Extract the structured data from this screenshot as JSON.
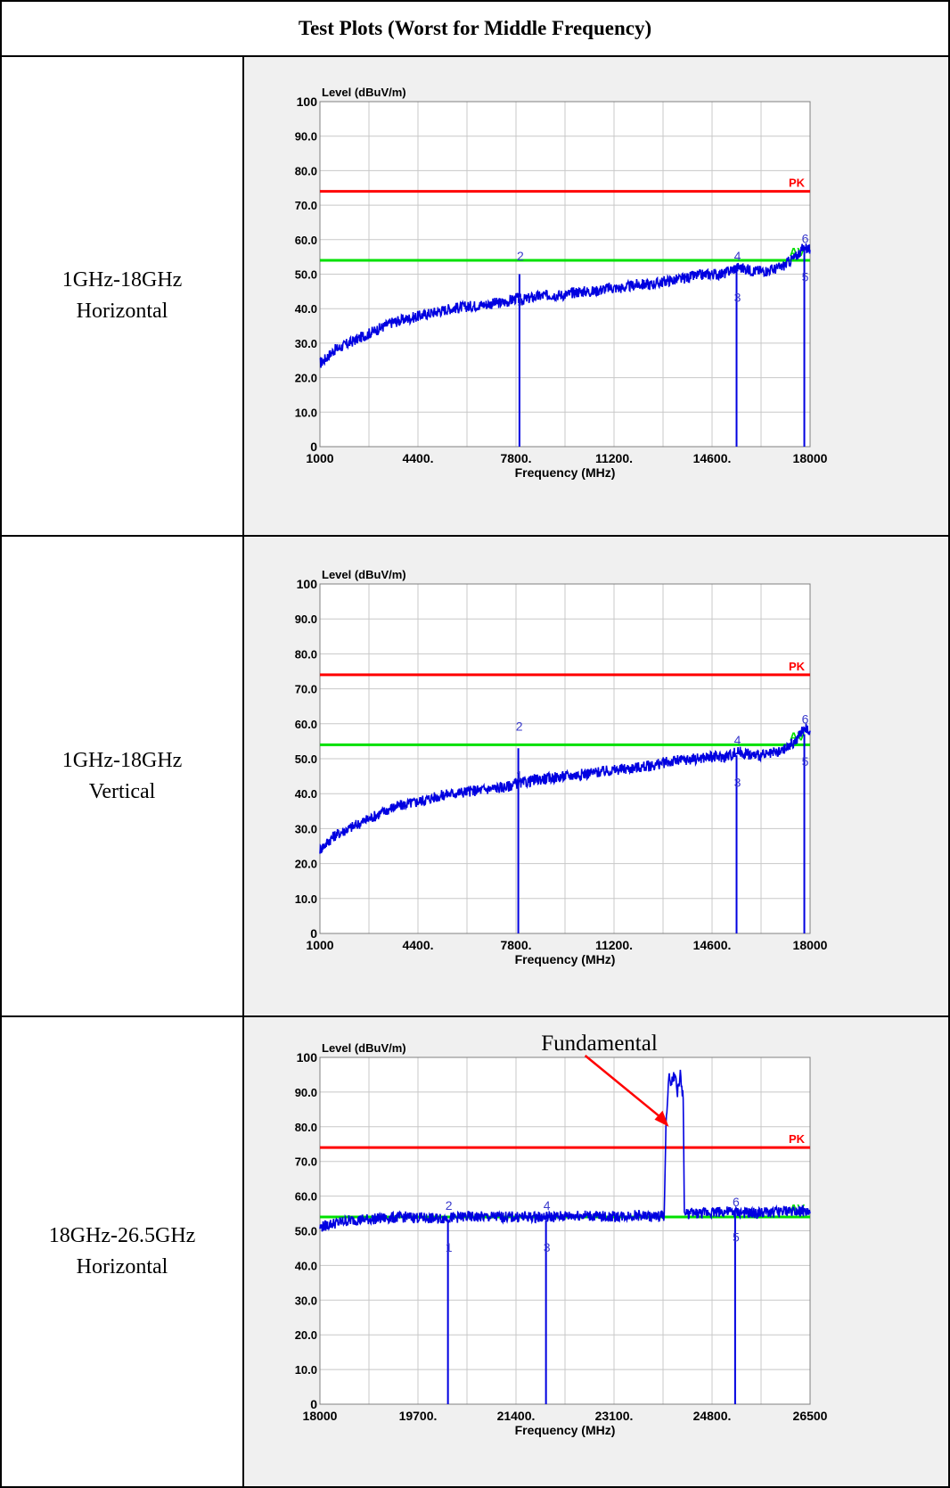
{
  "table": {
    "title": "Test Plots (Worst for Middle Frequency)",
    "rows": [
      {
        "line1": "1GHz-18GHz",
        "line2": "Horizontal"
      },
      {
        "line1": "1GHz-18GHz",
        "line2": "Vertical"
      },
      {
        "line1": "18GHz-26.5GHz",
        "line2": "Horizontal"
      }
    ]
  },
  "colors": {
    "trace": "#0000e0",
    "pk_limit": "#ff0000",
    "av_limit": "#00e000",
    "grid": "#c8c8c8",
    "marker_label": "#3a3acc"
  },
  "chart_data": [
    {
      "type": "line",
      "ylabel": "Level (dBuV/m)",
      "xlabel": "Frequency (MHz)",
      "xlim": [
        1000,
        18000
      ],
      "ylim": [
        0,
        100
      ],
      "x_ticks": [
        1000,
        4400,
        7800,
        11200,
        14600,
        18000
      ],
      "x_tick_labels": [
        "1000",
        "4400.",
        "7800.",
        "11200.",
        "14600.",
        "18000"
      ],
      "y_tick_labels": [
        "0",
        "10.0",
        "20.0",
        "30.0",
        "40.0",
        "50.0",
        "60.0",
        "70.0",
        "80.0",
        "90.0",
        "100"
      ],
      "limits": [
        {
          "label": "PK",
          "value": 74
        },
        {
          "label": "AV",
          "value": 54
        }
      ],
      "series": [
        {
          "x": [
            1000,
            1500,
            2000,
            2500,
            3000,
            3500,
            4000,
            4500,
            5000,
            5500,
            6000,
            6500,
            7000,
            7500,
            7800,
            8000,
            8500,
            9000,
            9500,
            10000,
            10500,
            11000,
            11500,
            12000,
            12500,
            13000,
            13500,
            14000,
            14500,
            15000,
            15200,
            15500,
            16000,
            16500,
            17000,
            17500,
            17800,
            18000
          ],
          "y": [
            24,
            28,
            30,
            32,
            34,
            36,
            37,
            38,
            39,
            40,
            40.5,
            41,
            41.5,
            42,
            43,
            42.5,
            43.5,
            44,
            44,
            45,
            45,
            46,
            46,
            47,
            47,
            48,
            48.5,
            49.5,
            50,
            50,
            51,
            52,
            51,
            51,
            52,
            55,
            58,
            57
          ]
        }
      ],
      "markers": [
        {
          "label": "1",
          "x": 7920,
          "y": 42
        },
        {
          "label": "2",
          "x": 7920,
          "y": 53
        },
        {
          "label": "3",
          "x": 15450,
          "y": 43
        },
        {
          "label": "4",
          "x": 15450,
          "y": 53
        },
        {
          "label": "5",
          "x": 17800,
          "y": 49
        },
        {
          "label": "6",
          "x": 17800,
          "y": 58
        }
      ]
    },
    {
      "type": "line",
      "ylabel": "Level (dBuV/m)",
      "xlabel": "Frequency (MHz)",
      "xlim": [
        1000,
        18000
      ],
      "ylim": [
        0,
        100
      ],
      "x_ticks": [
        1000,
        4400,
        7800,
        11200,
        14600,
        18000
      ],
      "x_tick_labels": [
        "1000",
        "4400.",
        "7800.",
        "11200.",
        "14600.",
        "18000"
      ],
      "y_tick_labels": [
        "0",
        "10.0",
        "20.0",
        "30.0",
        "40.0",
        "50.0",
        "60.0",
        "70.0",
        "80.0",
        "90.0",
        "100"
      ],
      "limits": [
        {
          "label": "PK",
          "value": 74
        },
        {
          "label": "AV",
          "value": 54
        }
      ],
      "series": [
        {
          "x": [
            1000,
            1500,
            2000,
            2500,
            3000,
            3500,
            4000,
            4500,
            5000,
            5500,
            6000,
            6500,
            7000,
            7500,
            7800,
            8000,
            8500,
            9000,
            9500,
            10000,
            10500,
            11000,
            11500,
            12000,
            12500,
            13000,
            13500,
            14000,
            14500,
            15000,
            15200,
            15500,
            16000,
            16500,
            17000,
            17500,
            17800,
            18000
          ],
          "y": [
            24,
            28,
            30,
            32,
            34,
            36,
            37,
            38,
            39,
            40,
            40.5,
            41,
            41.5,
            42,
            43,
            43,
            44,
            44.5,
            45,
            45.5,
            46,
            46.5,
            47,
            47.5,
            48,
            49,
            49.5,
            50,
            50.5,
            50.5,
            51,
            52,
            51,
            51,
            52,
            55,
            59,
            58
          ]
        }
      ],
      "markers": [
        {
          "label": "1",
          "x": 7880,
          "y": 45
        },
        {
          "label": "2",
          "x": 7880,
          "y": 57
        },
        {
          "label": "3",
          "x": 15450,
          "y": 43
        },
        {
          "label": "4",
          "x": 15450,
          "y": 53
        },
        {
          "label": "5",
          "x": 17800,
          "y": 49
        },
        {
          "label": "6",
          "x": 17800,
          "y": 59
        }
      ]
    },
    {
      "type": "line",
      "ylabel": "Level (dBuV/m)",
      "xlabel": "Frequency (MHz)",
      "xlim": [
        18000,
        26500
      ],
      "ylim": [
        0,
        100
      ],
      "x_ticks": [
        18000,
        19700,
        21400,
        23100,
        24800,
        26500
      ],
      "x_tick_labels": [
        "18000",
        "19700.",
        "21400.",
        "23100.",
        "24800.",
        "26500"
      ],
      "y_tick_labels": [
        "0",
        "10.0",
        "20.0",
        "30.0",
        "40.0",
        "50.0",
        "60.0",
        "70.0",
        "80.0",
        "90.0",
        "100"
      ],
      "limits": [
        {
          "label": "PK",
          "value": 74
        },
        {
          "label": "AV",
          "value": 54
        }
      ],
      "series": [
        {
          "x": [
            18000,
            18200,
            18500,
            19000,
            19500,
            20000,
            20500,
            21000,
            21500,
            22000,
            22500,
            23000,
            23500,
            23800,
            23970,
            24000,
            24050,
            24100,
            24150,
            24200,
            24250,
            24300,
            24320,
            24400,
            24600,
            24800,
            25000,
            25500,
            26000,
            26300,
            26500
          ],
          "y": [
            51,
            52,
            53,
            53.5,
            54,
            53.5,
            54,
            54,
            54,
            54,
            54.5,
            54,
            54.5,
            54,
            54.5,
            80,
            94,
            93,
            95,
            90,
            95,
            88,
            55,
            55,
            55,
            55.5,
            55.5,
            55,
            55.5,
            56,
            55
          ]
        }
      ],
      "markers": [
        {
          "label": "1",
          "x": 20220,
          "y": 45
        },
        {
          "label": "2",
          "x": 20220,
          "y": 55
        },
        {
          "label": "3",
          "x": 21920,
          "y": 45
        },
        {
          "label": "4",
          "x": 21920,
          "y": 55
        },
        {
          "label": "5",
          "x": 25200,
          "y": 48
        },
        {
          "label": "6",
          "x": 25200,
          "y": 56
        }
      ],
      "annotation": {
        "text": "Fundamental",
        "target_x": 24050,
        "target_y": 80
      }
    }
  ]
}
